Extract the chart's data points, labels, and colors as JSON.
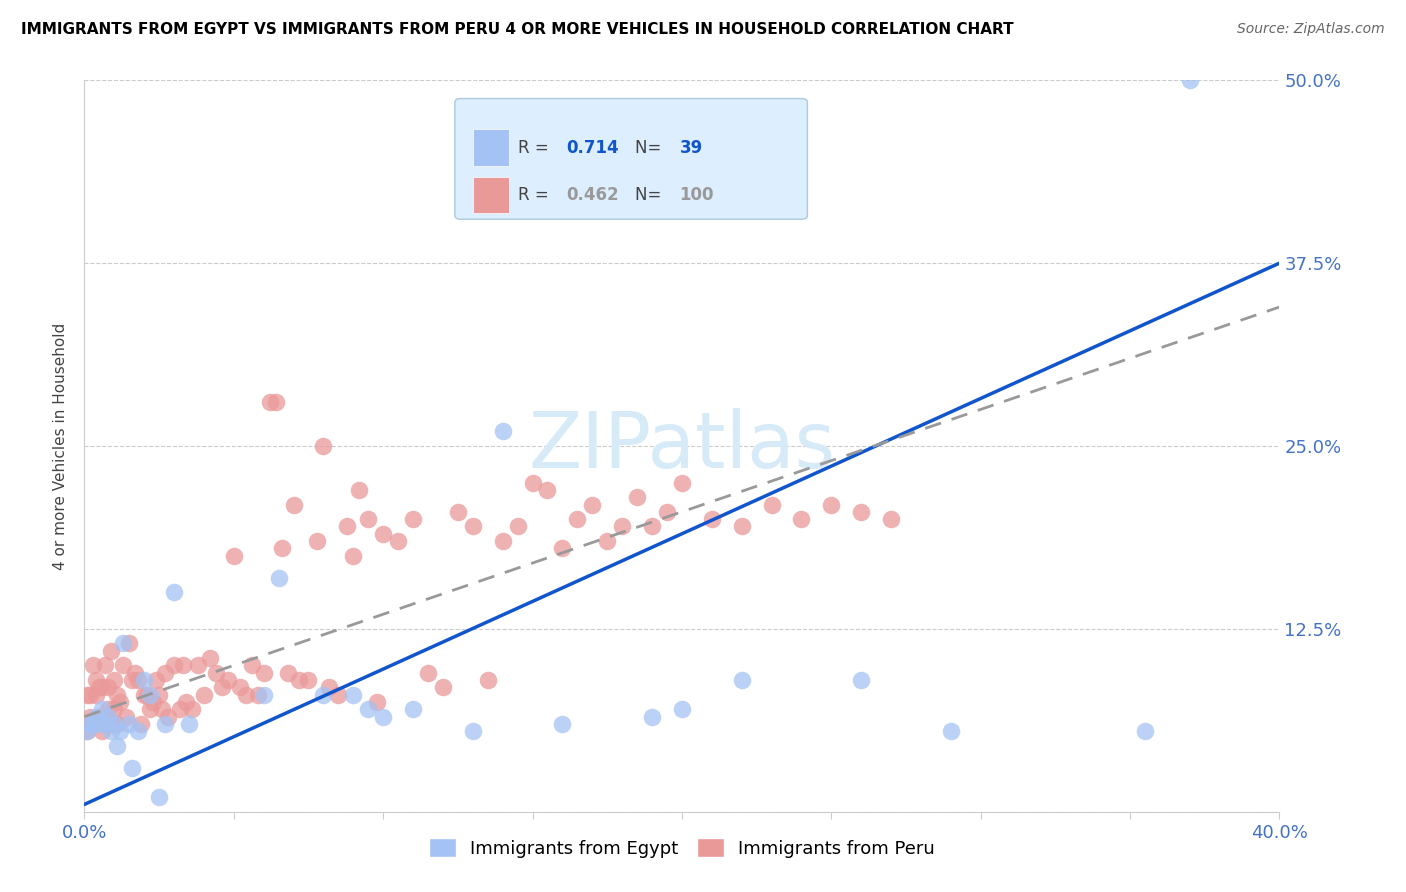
{
  "title": "IMMIGRANTS FROM EGYPT VS IMMIGRANTS FROM PERU 4 OR MORE VEHICLES IN HOUSEHOLD CORRELATION CHART",
  "source": "Source: ZipAtlas.com",
  "ylabel": "4 or more Vehicles in Household",
  "xlim": [
    0.0,
    0.4
  ],
  "ylim": [
    0.0,
    0.5
  ],
  "xtick_positions": [
    0.0,
    0.05,
    0.1,
    0.15,
    0.2,
    0.25,
    0.3,
    0.35,
    0.4
  ],
  "xticklabels": [
    "0.0%",
    "",
    "",
    "",
    "",
    "",
    "",
    "",
    "40.0%"
  ],
  "ytick_positions": [
    0.0,
    0.125,
    0.25,
    0.375,
    0.5
  ],
  "ytick_labels": [
    "",
    "12.5%",
    "25.0%",
    "37.5%",
    "50.0%"
  ],
  "egypt_R": 0.714,
  "egypt_N": 39,
  "peru_R": 0.462,
  "peru_N": 100,
  "egypt_color": "#a4c2f4",
  "peru_color": "#ea9999",
  "egypt_line_color": "#1155cc",
  "peru_line_color": "#999999",
  "tick_color": "#4472c4",
  "watermark_color": "#d6eaf8",
  "egypt_line_y0": 0.005,
  "egypt_line_y1": 0.375,
  "peru_line_y0": 0.065,
  "peru_line_y1": 0.345,
  "egypt_x": [
    0.001,
    0.002,
    0.003,
    0.004,
    0.005,
    0.006,
    0.007,
    0.008,
    0.009,
    0.01,
    0.011,
    0.012,
    0.013,
    0.015,
    0.016,
    0.018,
    0.02,
    0.022,
    0.025,
    0.027,
    0.03,
    0.035,
    0.06,
    0.065,
    0.08,
    0.09,
    0.095,
    0.1,
    0.11,
    0.13,
    0.14,
    0.16,
    0.19,
    0.2,
    0.22,
    0.26,
    0.29,
    0.355,
    0.37
  ],
  "egypt_y": [
    0.055,
    0.06,
    0.06,
    0.065,
    0.06,
    0.07,
    0.06,
    0.065,
    0.055,
    0.06,
    0.045,
    0.055,
    0.115,
    0.06,
    0.03,
    0.055,
    0.09,
    0.08,
    0.01,
    0.06,
    0.15,
    0.06,
    0.08,
    0.16,
    0.08,
    0.08,
    0.07,
    0.065,
    0.07,
    0.055,
    0.26,
    0.06,
    0.065,
    0.07,
    0.09,
    0.09,
    0.055,
    0.055,
    0.5
  ],
  "peru_x": [
    0.001,
    0.001,
    0.002,
    0.002,
    0.003,
    0.003,
    0.004,
    0.004,
    0.005,
    0.005,
    0.006,
    0.006,
    0.007,
    0.007,
    0.008,
    0.008,
    0.009,
    0.009,
    0.01,
    0.01,
    0.011,
    0.011,
    0.012,
    0.013,
    0.014,
    0.015,
    0.016,
    0.017,
    0.018,
    0.019,
    0.02,
    0.021,
    0.022,
    0.023,
    0.024,
    0.025,
    0.026,
    0.027,
    0.028,
    0.03,
    0.032,
    0.033,
    0.034,
    0.036,
    0.038,
    0.04,
    0.042,
    0.044,
    0.046,
    0.048,
    0.05,
    0.052,
    0.054,
    0.056,
    0.058,
    0.06,
    0.062,
    0.064,
    0.066,
    0.068,
    0.07,
    0.072,
    0.075,
    0.078,
    0.08,
    0.082,
    0.085,
    0.088,
    0.09,
    0.092,
    0.095,
    0.098,
    0.1,
    0.105,
    0.11,
    0.115,
    0.12,
    0.125,
    0.13,
    0.135,
    0.14,
    0.145,
    0.15,
    0.155,
    0.16,
    0.165,
    0.17,
    0.175,
    0.18,
    0.185,
    0.19,
    0.195,
    0.2,
    0.21,
    0.22,
    0.23,
    0.24,
    0.25,
    0.26,
    0.27
  ],
  "peru_y": [
    0.055,
    0.08,
    0.065,
    0.08,
    0.1,
    0.06,
    0.08,
    0.09,
    0.085,
    0.065,
    0.055,
    0.085,
    0.1,
    0.06,
    0.07,
    0.085,
    0.11,
    0.06,
    0.07,
    0.09,
    0.08,
    0.06,
    0.075,
    0.1,
    0.065,
    0.115,
    0.09,
    0.095,
    0.09,
    0.06,
    0.08,
    0.08,
    0.07,
    0.075,
    0.09,
    0.08,
    0.07,
    0.095,
    0.065,
    0.1,
    0.07,
    0.1,
    0.075,
    0.07,
    0.1,
    0.08,
    0.105,
    0.095,
    0.085,
    0.09,
    0.175,
    0.085,
    0.08,
    0.1,
    0.08,
    0.095,
    0.28,
    0.28,
    0.18,
    0.095,
    0.21,
    0.09,
    0.09,
    0.185,
    0.25,
    0.085,
    0.08,
    0.195,
    0.175,
    0.22,
    0.2,
    0.075,
    0.19,
    0.185,
    0.2,
    0.095,
    0.085,
    0.205,
    0.195,
    0.09,
    0.185,
    0.195,
    0.225,
    0.22,
    0.18,
    0.2,
    0.21,
    0.185,
    0.195,
    0.215,
    0.195,
    0.205,
    0.225,
    0.2,
    0.195,
    0.21,
    0.2,
    0.21,
    0.205,
    0.2
  ]
}
